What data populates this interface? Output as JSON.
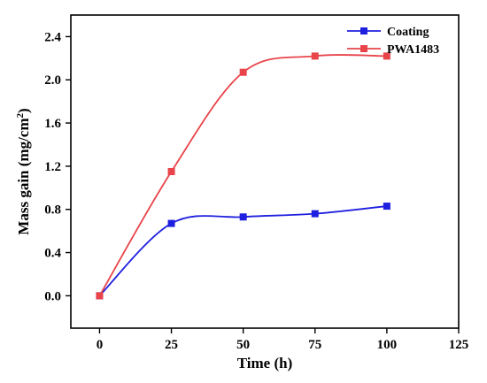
{
  "chart_data": {
    "type": "line",
    "xlabel": "Time (h)",
    "ylabel_prefix": "Mass gain (mg/cm",
    "ylabel_sup": "2",
    "ylabel_suffix": ")",
    "xlim": [
      -10,
      125
    ],
    "ylim": [
      -0.3,
      2.6
    ],
    "xticks": [
      0,
      25,
      50,
      75,
      100,
      125
    ],
    "yticks": [
      0.0,
      0.4,
      0.8,
      1.2,
      1.6,
      2.0,
      2.4
    ],
    "grid": false,
    "legend_position": "top-right",
    "series": [
      {
        "name": "Coating",
        "color": "#1f1fe0",
        "marker": "square",
        "x": [
          0,
          25,
          50,
          75,
          100
        ],
        "y": [
          0.0,
          0.67,
          0.73,
          0.76,
          0.83
        ]
      },
      {
        "name": "PWA1483",
        "color": "#e8444a",
        "marker": "square",
        "x": [
          0,
          25,
          50,
          75,
          100
        ],
        "y": [
          0.0,
          1.15,
          2.07,
          2.22,
          2.22
        ]
      }
    ]
  }
}
